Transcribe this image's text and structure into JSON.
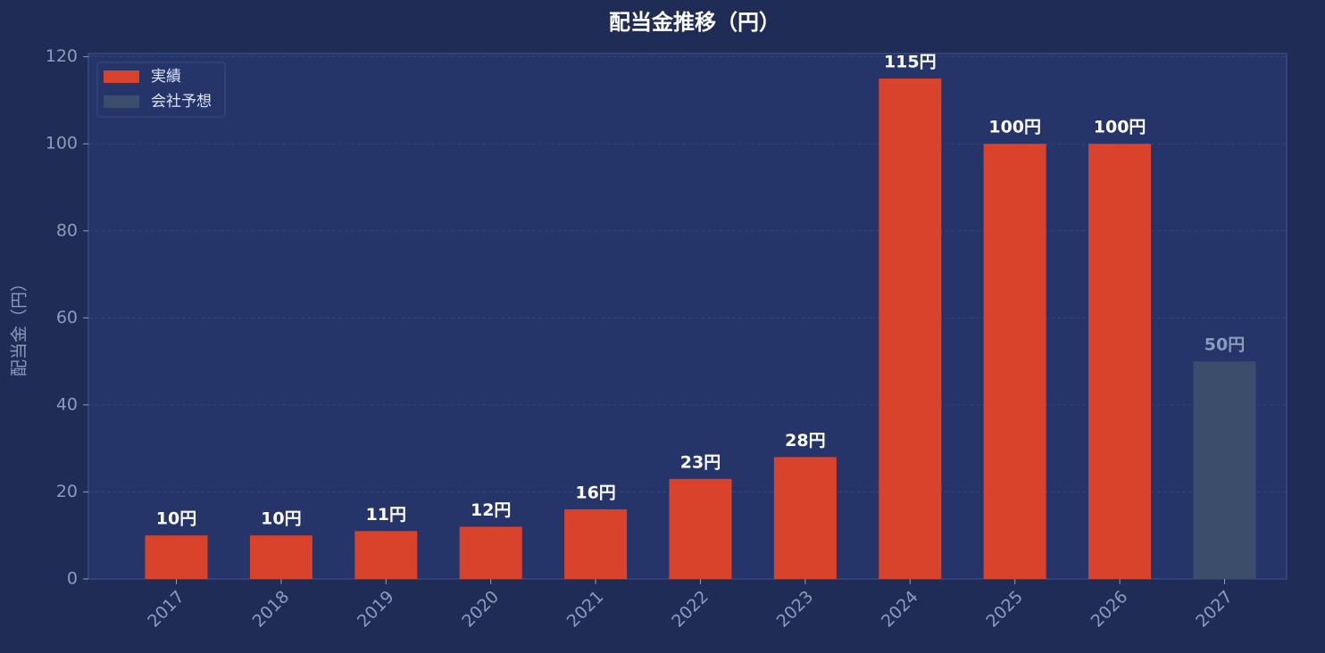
{
  "chart_data": {
    "type": "bar",
    "title": "配当金推移（円）",
    "y_label": "配当金（円）",
    "categories": [
      "2017",
      "2018",
      "2019",
      "2020",
      "2021",
      "2022",
      "2023",
      "2024",
      "2025",
      "2026",
      "2027"
    ],
    "series": [
      {
        "name": "実績",
        "color": "#d9432b",
        "label_color": "#ffffff",
        "values": [
          10,
          10,
          11,
          12,
          16,
          23,
          28,
          115,
          100,
          100,
          null
        ],
        "value_labels": [
          "10円",
          "10円",
          "11円",
          "12円",
          "16円",
          "23円",
          "28円",
          "115円",
          "100円",
          "100円",
          null
        ]
      },
      {
        "name": "会社予想",
        "color": "#3c4d6c",
        "label_color": "#8d9bbb",
        "values": [
          null,
          null,
          null,
          null,
          null,
          null,
          null,
          null,
          null,
          null,
          50
        ],
        "value_labels": [
          null,
          null,
          null,
          null,
          null,
          null,
          null,
          null,
          null,
          null,
          "50円"
        ]
      }
    ],
    "ylim": [
      0,
      120.75
    ],
    "yticks": [
      0,
      20,
      40,
      60,
      80,
      100,
      120
    ],
    "grid": true,
    "legend": "upper left"
  }
}
